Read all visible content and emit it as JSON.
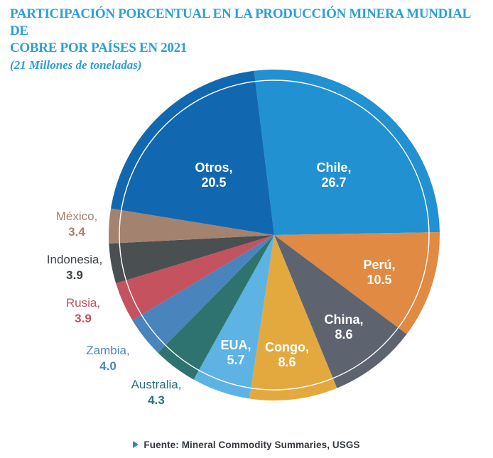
{
  "header": {
    "title_line1": "PARTICIPACIÓN PORCENTUAL EN LA PRODUCCIÓN MINERA MUNDIAL DE",
    "title_line2": "COBRE POR PAÍSES EN 2021",
    "subtitle": "(21 Millones de toneladas)",
    "title_color": "#2b9fd8"
  },
  "footer": {
    "source": "Fuente: Mineral Commodity Summaries, USGS",
    "bullet_color": "#1f87c9"
  },
  "chart_data": {
    "type": "pie",
    "title": "PARTICIPACIÓN PORCENTUAL EN LA PRODUCCIÓN MINERA MUNDIAL DE COBRE POR PAÍSES EN 2021",
    "subtitle": "(21 Millones de toneladas)",
    "unit": "percent",
    "start_angle_deg": -7,
    "direction": "clockwise",
    "inner_ring": {
      "color": "#ffffff",
      "radius_ratio": 0.935
    },
    "slices": [
      {
        "label": "Chile",
        "value": 26.7,
        "value_text": "26.7",
        "color": "#2191d2",
        "label_placement": "inside",
        "label_color": "#ffffff"
      },
      {
        "label": "Perú",
        "value": 10.5,
        "value_text": "10.5",
        "color": "#e08a43",
        "label_placement": "inside",
        "label_color": "#ffffff"
      },
      {
        "label": "China",
        "value": 8.6,
        "value_text": "8.6",
        "color": "#5d6470",
        "label_placement": "inside",
        "label_color": "#ffffff"
      },
      {
        "label": "Congo",
        "value": 8.6,
        "value_text": "8.6",
        "color": "#e3a93f",
        "label_placement": "inside",
        "label_color": "#ffffff"
      },
      {
        "label": "EUA",
        "value": 5.7,
        "value_text": "5.7",
        "color": "#5cb3e4",
        "label_placement": "inside",
        "label_color": "#ffffff"
      },
      {
        "label": "Australia",
        "value": 4.3,
        "value_text": "4.3",
        "color": "#2e736f",
        "label_placement": "outside",
        "label_color": "#2e6f75"
      },
      {
        "label": "Zambia",
        "value": 4.0,
        "value_text": "4.0",
        "color": "#4a84bd",
        "label_placement": "outside",
        "label_color": "#4a86c6"
      },
      {
        "label": "Rusia",
        "value": 3.9,
        "value_text": "3.9",
        "color": "#c5525f",
        "label_placement": "outside",
        "label_color": "#c4515c"
      },
      {
        "label": "Indonesia",
        "value": 3.9,
        "value_text": "3.9",
        "color": "#4a4f52",
        "label_placement": "outside",
        "label_color": "#3d4348"
      },
      {
        "label": "México",
        "value": 3.4,
        "value_text": "3.4",
        "color": "#a48270",
        "label_placement": "outside",
        "label_color": "#a48270"
      },
      {
        "label": "Otros",
        "value": 20.5,
        "value_text": "20.5",
        "color": "#1268b0",
        "label_placement": "inside",
        "label_color": "#ffffff"
      }
    ],
    "source": "Fuente: Mineral Commodity Summaries, USGS"
  }
}
